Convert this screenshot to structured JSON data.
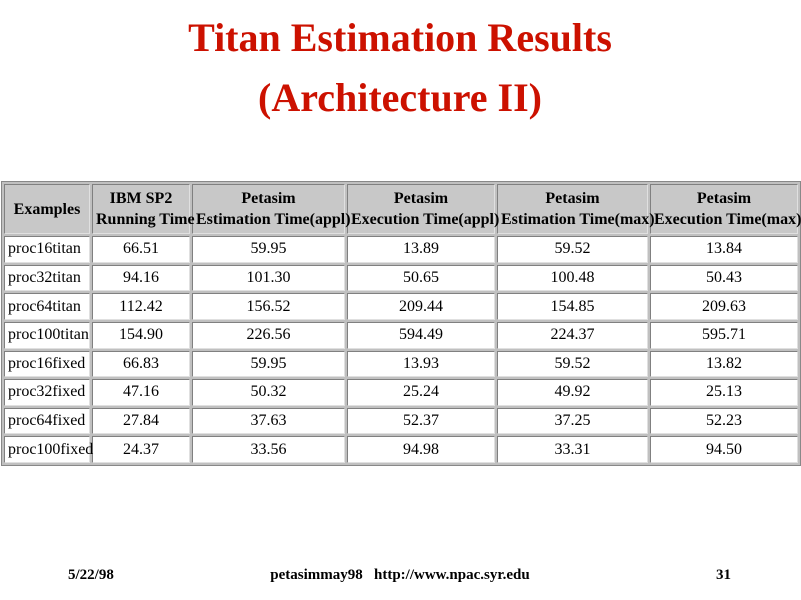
{
  "title": [
    "Titan Estimation Results",
    "(Architecture II)"
  ],
  "table": {
    "header": [
      [
        "Examples"
      ],
      [
        "IBM SP2",
        "Running Time"
      ],
      [
        "Petasim",
        "Estimation Time(appl)"
      ],
      [
        "Petasim",
        "Execution Time(appl)"
      ],
      [
        "Petasim",
        "Estimation Time(max)"
      ],
      [
        "Petasim",
        "Execution Time(max)"
      ]
    ],
    "rows": [
      [
        "proc16titan",
        "66.51",
        "59.95",
        "13.89",
        "59.52",
        "13.84"
      ],
      [
        "proc32titan",
        "94.16",
        "101.30",
        "50.65",
        "100.48",
        "50.43"
      ],
      [
        "proc64titan",
        "112.42",
        "156.52",
        "209.44",
        "154.85",
        "209.63"
      ],
      [
        "proc100titan",
        "154.90",
        "226.56",
        "594.49",
        "224.37",
        "595.71"
      ],
      [
        "proc16fixed",
        "66.83",
        "59.95",
        "13.93",
        "59.52",
        "13.82"
      ],
      [
        "proc32fixed",
        "47.16",
        "50.32",
        "25.24",
        "49.92",
        "25.13"
      ],
      [
        "proc64fixed",
        "27.84",
        "37.63",
        "52.37",
        "37.25",
        "52.23"
      ],
      [
        "proc100fixed",
        "24.37",
        "33.56",
        "94.98",
        "33.31",
        "94.50"
      ]
    ]
  },
  "footer": {
    "date": "5/22/98",
    "center": "petasimmay98   http://www.npac.syr.edu",
    "page": "31"
  }
}
